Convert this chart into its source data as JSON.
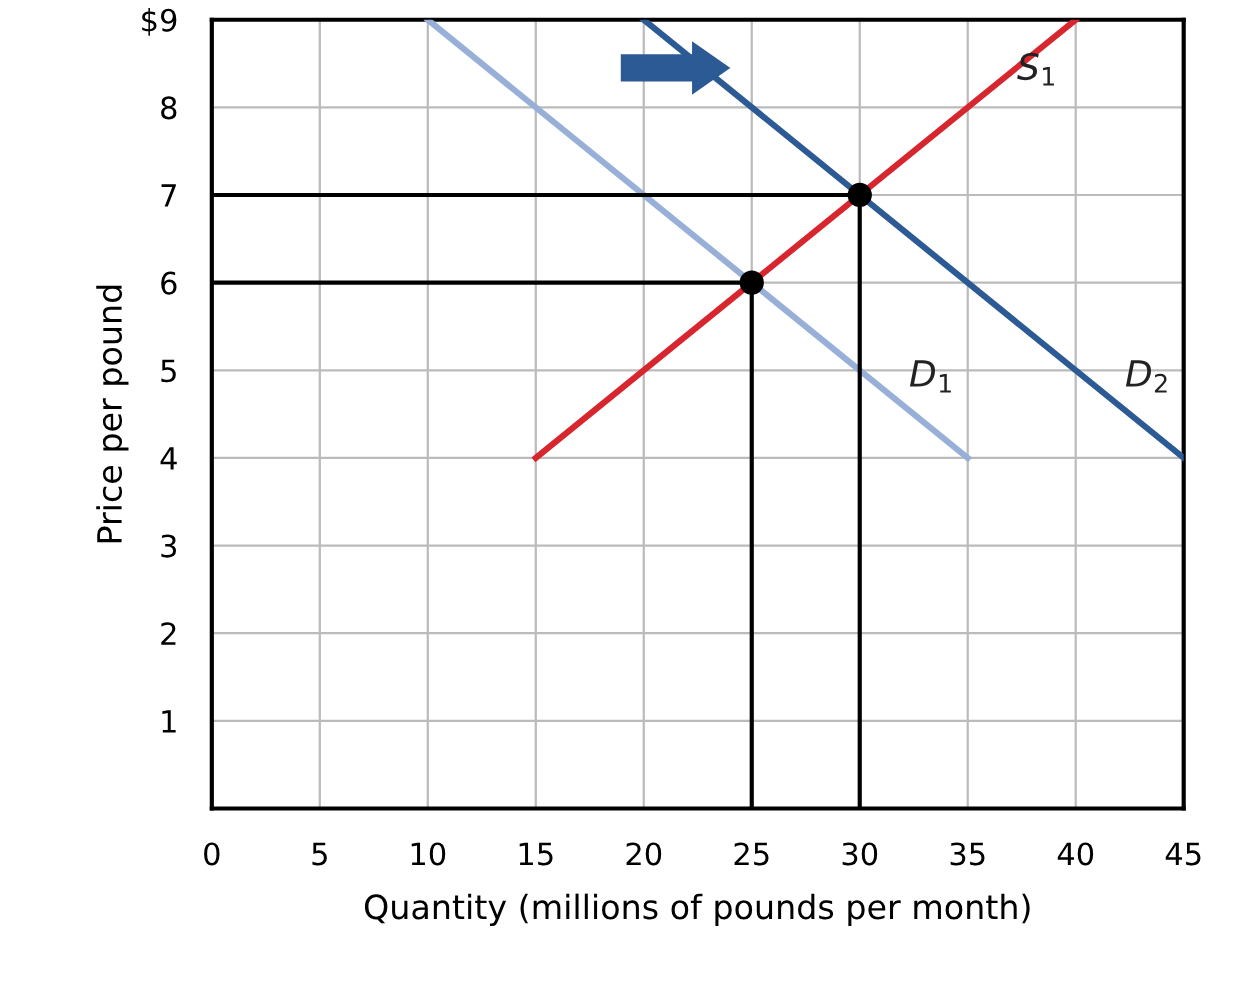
{
  "chart_data": {
    "type": "line",
    "xlabel": "Quantity (millions of pounds per month)",
    "ylabel": "Price per pound",
    "xlim": [
      0,
      45
    ],
    "ylim": [
      0,
      9
    ],
    "xticks": [
      0,
      5,
      10,
      15,
      20,
      25,
      30,
      35,
      40,
      45
    ],
    "yticks": [
      1,
      2,
      3,
      4,
      5,
      6,
      7,
      8,
      {
        "value": 9,
        "label": "$9"
      }
    ],
    "grid": true,
    "series": [
      {
        "name": "S$_{1}$",
        "color": "#d7262e",
        "x": [
          15,
          40
        ],
        "values": [
          4,
          9
        ]
      },
      {
        "name": "D$_{1}$",
        "color": "#98b0d8",
        "x": [
          10,
          35
        ],
        "values": [
          9,
          4
        ]
      },
      {
        "name": "D$_{2}$",
        "color": "#2c5a94",
        "x": [
          20,
          45
        ],
        "values": [
          9,
          4
        ]
      },
      {
        "color": "#000000",
        "x": [
          0,
          25
        ],
        "values": [
          6,
          6
        ]
      },
      {
        "color": "#000000",
        "x": [
          0,
          30
        ],
        "values": [
          7,
          7
        ]
      },
      {
        "color": "#000000",
        "x": [
          25,
          25
        ],
        "values": [
          0,
          6
        ]
      },
      {
        "color": "#000000",
        "x": [
          30,
          30
        ],
        "values": [
          0,
          7
        ]
      },
      {
        "type": "scatter",
        "marker": "circle",
        "color": "#000000",
        "x": [
          25,
          30
        ],
        "values": [
          6,
          7
        ]
      }
    ]
  }
}
